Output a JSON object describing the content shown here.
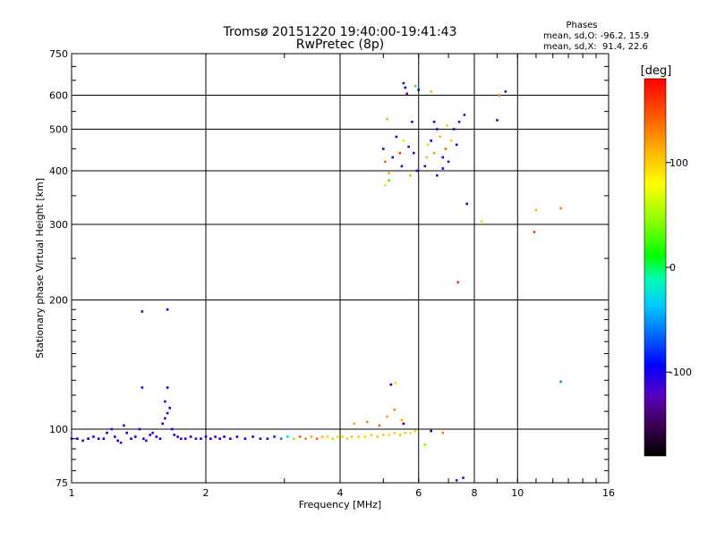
{
  "chart_data": {
    "type": "scatter",
    "title": "Tromsø 20151220 19:40:00-19:41:43",
    "subtitle": "RwPretec (8p)",
    "stats": {
      "header": "Phases",
      "line_o": "mean, sd,O: -96.2, 15.9",
      "line_x": "mean, sd,X:  91.4, 22.6"
    },
    "xlabel": "Frequency [MHz]",
    "ylabel": "Stationary phase Virtual Height [km]",
    "xscale": "log2",
    "yscale": "log",
    "xlim": [
      1,
      16
    ],
    "ylim": [
      75,
      750
    ],
    "xticks": [
      1,
      2,
      4,
      6,
      8,
      10,
      16
    ],
    "xtick_labels": [
      "1",
      "2",
      "4",
      "6",
      "8",
      "10",
      "16"
    ],
    "yticks": [
      75,
      100,
      200,
      300,
      400,
      500,
      600,
      750
    ],
    "ytick_labels": [
      "75",
      "100",
      "200",
      "300",
      "400",
      "500",
      "600",
      "750"
    ],
    "grid": true,
    "colorbar": {
      "label": "[deg]",
      "range": [
        -180,
        180
      ],
      "ticks": [
        100,
        0,
        -100
      ],
      "tick_labels": [
        "100",
        "0",
        "-100"
      ]
    },
    "series": [
      {
        "values": [
          {
            "x": 1.0,
            "y": 95,
            "phase": -105
          },
          {
            "x": 1.03,
            "y": 95,
            "phase": -100
          },
          {
            "x": 1.06,
            "y": 94,
            "phase": -110
          },
          {
            "x": 1.09,
            "y": 95,
            "phase": -100
          },
          {
            "x": 1.12,
            "y": 96,
            "phase": -95
          },
          {
            "x": 1.15,
            "y": 95,
            "phase": -105
          },
          {
            "x": 1.18,
            "y": 95,
            "phase": -100
          },
          {
            "x": 1.2,
            "y": 98,
            "phase": -100
          },
          {
            "x": 1.23,
            "y": 100,
            "phase": -105
          },
          {
            "x": 1.25,
            "y": 96,
            "phase": -100
          },
          {
            "x": 1.27,
            "y": 94,
            "phase": -95
          },
          {
            "x": 1.29,
            "y": 93,
            "phase": -110
          },
          {
            "x": 1.31,
            "y": 102,
            "phase": -105
          },
          {
            "x": 1.33,
            "y": 98,
            "phase": -100
          },
          {
            "x": 1.36,
            "y": 95,
            "phase": -100
          },
          {
            "x": 1.39,
            "y": 96,
            "phase": -95
          },
          {
            "x": 1.42,
            "y": 100,
            "phase": -105
          },
          {
            "x": 1.45,
            "y": 95,
            "phase": -100
          },
          {
            "x": 1.47,
            "y": 94,
            "phase": -110
          },
          {
            "x": 1.5,
            "y": 97,
            "phase": -100
          },
          {
            "x": 1.52,
            "y": 98,
            "phase": -100
          },
          {
            "x": 1.55,
            "y": 96,
            "phase": -95
          },
          {
            "x": 1.58,
            "y": 95,
            "phase": -100
          },
          {
            "x": 1.6,
            "y": 103,
            "phase": -105
          },
          {
            "x": 1.62,
            "y": 106,
            "phase": -100
          },
          {
            "x": 1.64,
            "y": 109,
            "phase": -110
          },
          {
            "x": 1.66,
            "y": 112,
            "phase": -100
          },
          {
            "x": 1.68,
            "y": 100,
            "phase": -100
          },
          {
            "x": 1.7,
            "y": 97,
            "phase": -95
          },
          {
            "x": 1.73,
            "y": 96,
            "phase": -100
          },
          {
            "x": 1.76,
            "y": 95,
            "phase": -105
          },
          {
            "x": 1.8,
            "y": 95,
            "phase": -100
          },
          {
            "x": 1.85,
            "y": 96,
            "phase": -100
          },
          {
            "x": 1.9,
            "y": 95,
            "phase": -105
          },
          {
            "x": 1.95,
            "y": 95,
            "phase": -100
          },
          {
            "x": 2.0,
            "y": 96,
            "phase": -100
          },
          {
            "x": 2.05,
            "y": 95,
            "phase": -95
          },
          {
            "x": 2.1,
            "y": 96,
            "phase": -100
          },
          {
            "x": 2.15,
            "y": 95,
            "phase": -105
          },
          {
            "x": 2.2,
            "y": 96,
            "phase": -100
          },
          {
            "x": 2.27,
            "y": 95,
            "phase": -100
          },
          {
            "x": 2.35,
            "y": 96,
            "phase": -95
          },
          {
            "x": 2.45,
            "y": 95,
            "phase": -100
          },
          {
            "x": 2.55,
            "y": 96,
            "phase": -100
          },
          {
            "x": 2.65,
            "y": 95,
            "phase": -95
          },
          {
            "x": 2.75,
            "y": 95,
            "phase": -90
          },
          {
            "x": 2.85,
            "y": 96,
            "phase": -85
          },
          {
            "x": 2.95,
            "y": 95,
            "phase": -60
          },
          {
            "x": 3.05,
            "y": 96,
            "phase": -30
          },
          {
            "x": 3.15,
            "y": 95,
            "phase": 40
          },
          {
            "x": 3.25,
            "y": 96,
            "phase": 150
          },
          {
            "x": 3.35,
            "y": 95,
            "phase": 130
          },
          {
            "x": 3.45,
            "y": 96,
            "phase": 120
          },
          {
            "x": 3.55,
            "y": 95,
            "phase": 140
          },
          {
            "x": 3.65,
            "y": 96,
            "phase": 110
          },
          {
            "x": 3.75,
            "y": 96,
            "phase": 100
          },
          {
            "x": 3.85,
            "y": 95,
            "phase": 105
          },
          {
            "x": 3.95,
            "y": 96,
            "phase": 100
          },
          {
            "x": 4.05,
            "y": 96,
            "phase": 95
          },
          {
            "x": 4.15,
            "y": 95,
            "phase": 100
          },
          {
            "x": 4.25,
            "y": 96,
            "phase": 105
          },
          {
            "x": 4.4,
            "y": 96,
            "phase": 100
          },
          {
            "x": 4.55,
            "y": 96,
            "phase": 95
          },
          {
            "x": 4.7,
            "y": 97,
            "phase": 100
          },
          {
            "x": 4.85,
            "y": 96,
            "phase": 105
          },
          {
            "x": 5.0,
            "y": 97,
            "phase": 100
          },
          {
            "x": 5.15,
            "y": 97,
            "phase": 95
          },
          {
            "x": 5.3,
            "y": 98,
            "phase": 100
          },
          {
            "x": 5.45,
            "y": 97,
            "phase": 105
          },
          {
            "x": 5.6,
            "y": 98,
            "phase": 100
          },
          {
            "x": 5.75,
            "y": 98,
            "phase": 95
          },
          {
            "x": 5.9,
            "y": 99,
            "phase": 100
          },
          {
            "x": 4.3,
            "y": 103,
            "phase": 120
          },
          {
            "x": 4.6,
            "y": 104,
            "phase": 130
          },
          {
            "x": 4.9,
            "y": 102,
            "phase": 140
          },
          {
            "x": 5.1,
            "y": 107,
            "phase": 120
          },
          {
            "x": 5.3,
            "y": 111,
            "phase": 130
          },
          {
            "x": 5.5,
            "y": 105,
            "phase": 115
          },
          {
            "x": 5.2,
            "y": 127,
            "phase": -140
          },
          {
            "x": 5.32,
            "y": 128,
            "phase": 90
          },
          {
            "x": 5.55,
            "y": 103,
            "phase": -150
          },
          {
            "x": 6.2,
            "y": 92,
            "phase": 40
          },
          {
            "x": 6.4,
            "y": 99,
            "phase": -150
          },
          {
            "x": 6.8,
            "y": 98,
            "phase": 130
          },
          {
            "x": 7.3,
            "y": 76,
            "phase": -120
          },
          {
            "x": 7.55,
            "y": 77,
            "phase": -110
          }
        ]
      },
      {
        "values": [
          {
            "x": 1.44,
            "y": 188,
            "phase": -110
          },
          {
            "x": 1.64,
            "y": 190,
            "phase": -105
          },
          {
            "x": 1.44,
            "y": 125,
            "phase": -100
          },
          {
            "x": 1.64,
            "y": 125,
            "phase": -100
          },
          {
            "x": 1.62,
            "y": 116,
            "phase": -110
          },
          {
            "x": 7.7,
            "y": 335,
            "phase": -110
          },
          {
            "x": 8.3,
            "y": 305,
            "phase": 50
          },
          {
            "x": 7.35,
            "y": 220,
            "phase": 160
          },
          {
            "x": 11.0,
            "y": 324,
            "phase": 110
          },
          {
            "x": 12.5,
            "y": 327,
            "phase": 130
          },
          {
            "x": 10.9,
            "y": 288,
            "phase": 160
          },
          {
            "x": 12.5,
            "y": 129,
            "phase": -50
          }
        ]
      },
      {
        "values": [
          {
            "x": 5.55,
            "y": 640,
            "phase": -110
          },
          {
            "x": 5.6,
            "y": 625,
            "phase": -100
          },
          {
            "x": 5.65,
            "y": 605,
            "phase": -120
          },
          {
            "x": 5.9,
            "y": 630,
            "phase": 0
          },
          {
            "x": 6.0,
            "y": 618,
            "phase": -100
          },
          {
            "x": 6.4,
            "y": 612,
            "phase": 110
          },
          {
            "x": 9.1,
            "y": 600,
            "phase": 130
          },
          {
            "x": 9.4,
            "y": 612,
            "phase": -120
          },
          {
            "x": 9.0,
            "y": 525,
            "phase": -110
          },
          {
            "x": 5.1,
            "y": 528,
            "phase": 110
          },
          {
            "x": 5.35,
            "y": 480,
            "phase": -100
          },
          {
            "x": 5.55,
            "y": 470,
            "phase": 60
          },
          {
            "x": 5.7,
            "y": 455,
            "phase": -120
          },
          {
            "x": 5.8,
            "y": 520,
            "phase": -100
          },
          {
            "x": 5.85,
            "y": 440,
            "phase": -110
          },
          {
            "x": 5.0,
            "y": 450,
            "phase": -100
          },
          {
            "x": 5.05,
            "y": 420,
            "phase": 140
          },
          {
            "x": 5.15,
            "y": 395,
            "phase": 110
          },
          {
            "x": 5.25,
            "y": 430,
            "phase": -100
          },
          {
            "x": 5.45,
            "y": 440,
            "phase": 160
          },
          {
            "x": 5.5,
            "y": 410,
            "phase": -110
          },
          {
            "x": 5.05,
            "y": 370,
            "phase": 60
          },
          {
            "x": 5.15,
            "y": 380,
            "phase": 30
          },
          {
            "x": 5.75,
            "y": 390,
            "phase": 110
          },
          {
            "x": 5.95,
            "y": 400,
            "phase": -110
          },
          {
            "x": 6.2,
            "y": 410,
            "phase": -140
          },
          {
            "x": 6.3,
            "y": 460,
            "phase": 50
          },
          {
            "x": 6.4,
            "y": 470,
            "phase": -100
          },
          {
            "x": 6.5,
            "y": 440,
            "phase": 120
          },
          {
            "x": 6.6,
            "y": 500,
            "phase": -110
          },
          {
            "x": 6.7,
            "y": 480,
            "phase": 110
          },
          {
            "x": 6.8,
            "y": 430,
            "phase": -100
          },
          {
            "x": 6.9,
            "y": 450,
            "phase": 140
          },
          {
            "x": 7.0,
            "y": 420,
            "phase": -120
          },
          {
            "x": 7.1,
            "y": 470,
            "phase": 100
          },
          {
            "x": 7.2,
            "y": 500,
            "phase": -100
          },
          {
            "x": 7.4,
            "y": 520,
            "phase": -110
          },
          {
            "x": 7.6,
            "y": 540,
            "phase": -120
          },
          {
            "x": 6.5,
            "y": 520,
            "phase": -110
          },
          {
            "x": 6.6,
            "y": 390,
            "phase": -130
          },
          {
            "x": 6.8,
            "y": 405,
            "phase": -100
          },
          {
            "x": 6.95,
            "y": 510,
            "phase": 50
          },
          {
            "x": 7.3,
            "y": 460,
            "phase": -100
          },
          {
            "x": 6.25,
            "y": 430,
            "phase": 110
          }
        ]
      }
    ]
  }
}
